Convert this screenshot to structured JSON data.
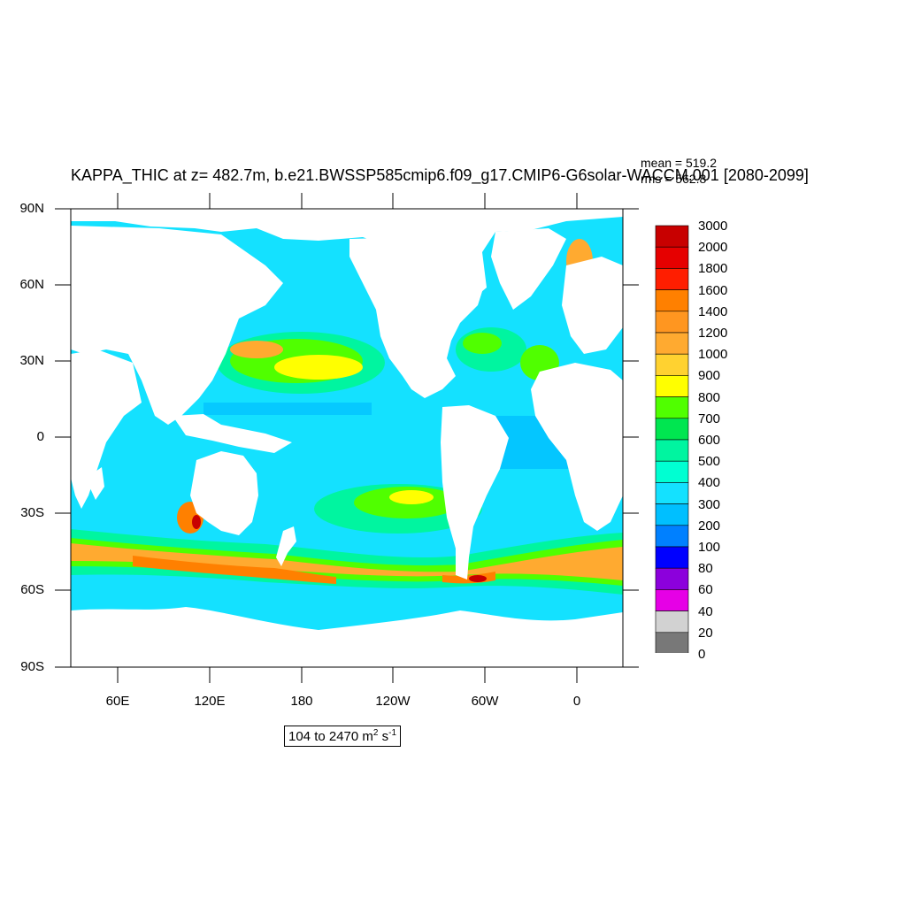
{
  "title": "KAPPA_THIC at z= 482.7m, b.e21.BWSSP585cmip6.f09_g17.CMIP6-G6solar-WACCM.001 [2080-2099]",
  "stats": {
    "mean": "mean = 519.2",
    "rms": "rms = 562.8"
  },
  "map": {
    "projection": "cylindrical-equidistant",
    "center_longitude": "~205E (Pacific-centered)",
    "lat_labels": [
      "90N",
      "60N",
      "30N",
      "0",
      "30S",
      "60S",
      "90S"
    ],
    "lon_labels": [
      "60E",
      "120E",
      "180",
      "120W",
      "60W",
      "0"
    ],
    "land_color": "#ffffff",
    "field": "KAPPA_THIC",
    "depth": "482.7m"
  },
  "colorbar": {
    "labels": [
      "3000",
      "2000",
      "1800",
      "1600",
      "1400",
      "1200",
      "1000",
      "900",
      "800",
      "700",
      "600",
      "500",
      "400",
      "300",
      "200",
      "100",
      "80",
      "60",
      "40",
      "20",
      "0"
    ],
    "colors_top_to_bottom": [
      "#c80000",
      "#e60000",
      "#ff1e00",
      "#ff8000",
      "#ff9620",
      "#ffaa30",
      "#ffd230",
      "#ffff00",
      "#50ff00",
      "#00e650",
      "#00f5a0",
      "#00ffd2",
      "#14e1ff",
      "#00bfff",
      "#0080ff",
      "#0000ff",
      "#8c00dc",
      "#e600e6",
      "#d2d2d2",
      "#787878"
    ]
  },
  "range_label": {
    "text": "104 to 2470 m",
    "unit_sup1": "2",
    "mid": " s",
    "unit_sup2": "-1"
  }
}
